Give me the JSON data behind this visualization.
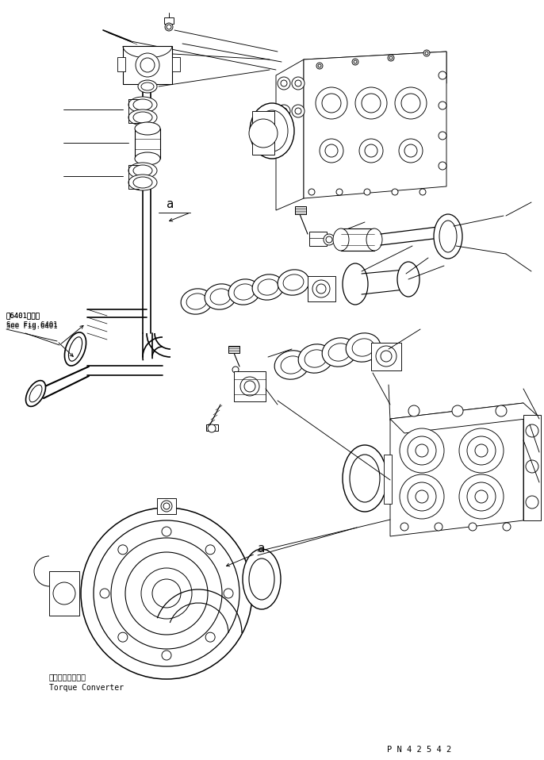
{
  "fig_width": 6.86,
  "fig_height": 9.58,
  "dpi": 100,
  "bg_color": "#ffffff",
  "line_color": "#000000",
  "lw": 0.65,
  "part_number": "P N 4 2 5 4 2",
  "label_a1": "a",
  "label_a2": "a",
  "ref_line1": "第6401図参照",
  "ref_line2": "See Fig.6401",
  "torque_jp": "トルクコンバータ",
  "torque_en": "Torque Converter"
}
